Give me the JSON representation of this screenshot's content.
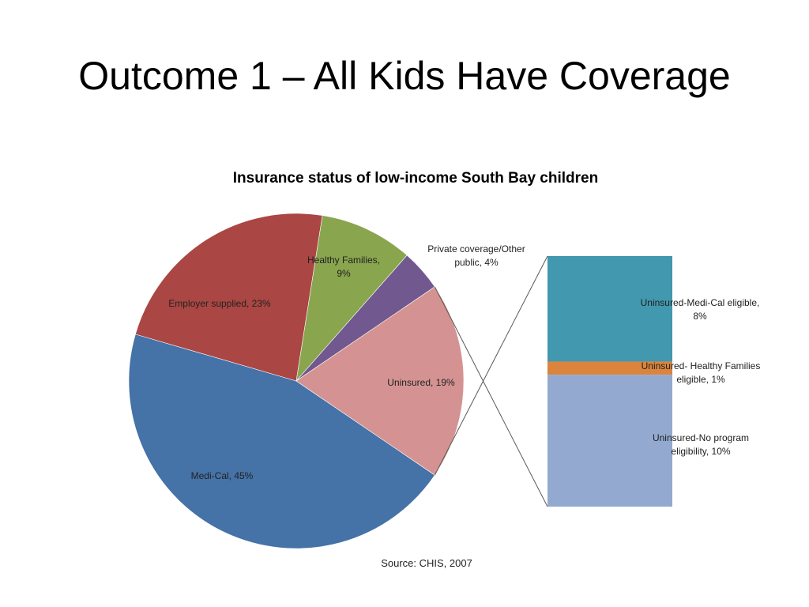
{
  "slide": {
    "title": "Outcome 1 – All Kids Have Coverage"
  },
  "chart_data": [
    {
      "type": "pie",
      "title": "Insurance status of low-income South Bay children",
      "source": "Source: CHIS, 2007",
      "slices": [
        {
          "name": "Medi-Cal",
          "value": 45,
          "color": "#4572A7",
          "label": [
            "Medi-Cal, 45%"
          ]
        },
        {
          "name": "Employer supplied",
          "value": 23,
          "color": "#AA4643",
          "label": [
            "Employer supplied, 23%"
          ]
        },
        {
          "name": "Healthy Families",
          "value": 9,
          "color": "#89A54E",
          "label": [
            "Healthy Families,",
            "9%"
          ]
        },
        {
          "name": "Private coverage/Other public",
          "value": 4,
          "color": "#71588F",
          "label": [
            "Private coverage/Other",
            "public, 4%"
          ]
        },
        {
          "name": "Uninsured",
          "value": 19,
          "color": "#D49392",
          "label": [
            "Uninsured, 19%"
          ]
        }
      ]
    },
    {
      "type": "bar",
      "stacked": true,
      "breakdown_of": "Uninsured",
      "segments": [
        {
          "name": "Uninsured-Medi-Cal eligible",
          "value": 8,
          "color": "#4198AF",
          "label": [
            "Uninsured-Medi-Cal eligible,",
            "8%"
          ]
        },
        {
          "name": "Uninsured- Healthy Families eligible",
          "value": 1,
          "color": "#DB843D",
          "label": [
            "Uninsured- Healthy Families",
            "eligible, 1%"
          ]
        },
        {
          "name": "Uninsured-No program eligibility",
          "value": 10,
          "color": "#93A9CF",
          "label": [
            "Uninsured-No program",
            "eligibility, 10%"
          ]
        }
      ]
    }
  ]
}
